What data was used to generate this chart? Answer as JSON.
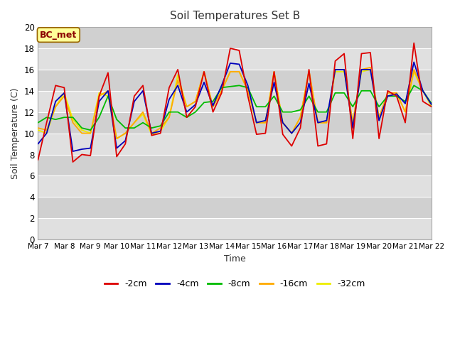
{
  "title": "Soil Temperatures Set B",
  "xlabel": "Time",
  "ylabel": "Soil Temperature (C)",
  "annotation": "BC_met",
  "ylim": [
    0,
    20
  ],
  "yticks": [
    0,
    2,
    4,
    6,
    8,
    10,
    12,
    14,
    16,
    18,
    20
  ],
  "xtick_labels": [
    "Mar 7",
    "Mar 8",
    "Mar 9",
    "Mar 10",
    "Mar 11",
    "Mar 12",
    "Mar 13",
    "Mar 14",
    "Mar 15",
    "Mar 16",
    "Mar 17",
    "Mar 18",
    "Mar 19",
    "Mar 20",
    "Mar 21",
    "Mar 22"
  ],
  "fig_bg_color": "#ffffff",
  "plot_bg_color": "#e8e8e8",
  "band_colors": [
    "#e8e8e8",
    "#d8d8d8"
  ],
  "series": [
    {
      "label": "-2cm",
      "color": "#dd0000",
      "zorder": 5,
      "x": [
        0,
        0.33,
        0.67,
        1.0,
        1.33,
        1.67,
        2.0,
        2.33,
        2.67,
        3.0,
        3.33,
        3.67,
        4.0,
        4.33,
        4.67,
        5.0,
        5.33,
        5.67,
        6.0,
        6.33,
        6.67,
        7.0,
        7.33,
        7.67,
        8.0,
        8.33,
        8.67,
        9.0,
        9.33,
        9.67,
        10.0,
        10.33,
        10.67,
        11.0,
        11.33,
        11.67,
        12.0,
        12.33,
        12.67,
        13.0,
        13.33,
        13.67,
        14.0,
        14.33,
        14.67,
        15.0
      ],
      "y": [
        7.5,
        11.0,
        14.5,
        14.3,
        7.3,
        8.0,
        7.9,
        13.5,
        15.7,
        7.8,
        9.0,
        13.5,
        14.5,
        9.8,
        10.0,
        14.3,
        16.0,
        11.5,
        12.5,
        15.8,
        12.0,
        13.8,
        18.0,
        17.8,
        13.5,
        9.9,
        10.0,
        15.8,
        9.9,
        8.8,
        10.5,
        16.0,
        8.8,
        9.0,
        16.8,
        17.5,
        9.5,
        17.5,
        17.6,
        9.5,
        14.0,
        13.5,
        11.0,
        18.5,
        13.0,
        12.5
      ]
    },
    {
      "label": "-4cm",
      "color": "#0000bb",
      "zorder": 4,
      "x": [
        0,
        0.33,
        0.67,
        1.0,
        1.33,
        1.67,
        2.0,
        2.33,
        2.67,
        3.0,
        3.33,
        3.67,
        4.0,
        4.33,
        4.67,
        5.0,
        5.33,
        5.67,
        6.0,
        6.33,
        6.67,
        7.0,
        7.33,
        7.67,
        8.0,
        8.33,
        8.67,
        9.0,
        9.33,
        9.67,
        10.0,
        10.33,
        10.67,
        11.0,
        11.33,
        11.67,
        12.0,
        12.33,
        12.67,
        13.0,
        13.33,
        13.67,
        14.0,
        14.33,
        14.67,
        15.0
      ],
      "y": [
        9.0,
        10.0,
        13.0,
        13.8,
        8.3,
        8.5,
        8.6,
        13.0,
        14.0,
        8.6,
        9.3,
        13.0,
        14.0,
        10.0,
        10.2,
        13.2,
        14.5,
        12.0,
        12.7,
        14.8,
        12.6,
        14.5,
        16.6,
        16.5,
        14.5,
        11.0,
        11.2,
        14.8,
        11.0,
        10.0,
        11.0,
        14.7,
        11.0,
        11.2,
        16.0,
        16.0,
        10.5,
        16.0,
        16.0,
        11.2,
        13.5,
        13.7,
        12.8,
        16.7,
        14.0,
        12.7
      ]
    },
    {
      "label": "-8cm",
      "color": "#00bb00",
      "zorder": 3,
      "x": [
        0,
        0.33,
        0.67,
        1.0,
        1.33,
        1.67,
        2.0,
        2.33,
        2.67,
        3.0,
        3.33,
        3.67,
        4.0,
        4.33,
        4.67,
        5.0,
        5.33,
        5.67,
        6.0,
        6.33,
        6.67,
        7.0,
        7.33,
        7.67,
        8.0,
        8.33,
        8.67,
        9.0,
        9.33,
        9.67,
        10.0,
        10.33,
        10.67,
        11.0,
        11.33,
        11.67,
        12.0,
        12.33,
        12.67,
        13.0,
        13.33,
        13.67,
        14.0,
        14.33,
        14.67,
        15.0
      ],
      "y": [
        11.0,
        11.5,
        11.3,
        11.5,
        11.5,
        10.5,
        10.3,
        11.5,
        13.5,
        11.3,
        10.5,
        10.5,
        11.0,
        10.5,
        10.7,
        12.0,
        12.0,
        11.5,
        12.0,
        12.9,
        13.0,
        14.3,
        14.4,
        14.5,
        14.3,
        12.5,
        12.5,
        13.5,
        12.0,
        12.0,
        12.2,
        13.5,
        12.0,
        12.0,
        13.8,
        13.8,
        12.5,
        14.0,
        14.0,
        12.5,
        13.5,
        13.5,
        13.0,
        14.5,
        14.0,
        12.8
      ]
    },
    {
      "label": "-16cm",
      "color": "#ffaa00",
      "zorder": 2,
      "x": [
        0,
        0.33,
        0.67,
        1.0,
        1.33,
        1.67,
        2.0,
        2.33,
        2.67,
        3.0,
        3.33,
        3.67,
        4.0,
        4.33,
        4.67,
        5.0,
        5.33,
        5.67,
        6.0,
        6.33,
        6.67,
        7.0,
        7.33,
        7.67,
        8.0,
        8.33,
        8.67,
        9.0,
        9.33,
        9.67,
        10.0,
        10.33,
        10.67,
        11.0,
        11.33,
        11.67,
        12.0,
        12.33,
        12.67,
        13.0,
        13.33,
        13.67,
        14.0,
        14.33,
        14.67,
        15.0
      ],
      "y": [
        10.5,
        10.3,
        12.5,
        13.5,
        11.0,
        10.0,
        10.0,
        13.5,
        14.0,
        9.5,
        10.0,
        11.0,
        12.0,
        10.0,
        10.5,
        11.5,
        15.0,
        12.5,
        13.0,
        15.8,
        12.5,
        14.0,
        15.8,
        15.8,
        14.0,
        11.0,
        11.0,
        15.8,
        11.0,
        10.0,
        11.5,
        15.9,
        11.0,
        11.0,
        16.0,
        16.0,
        11.0,
        16.0,
        16.2,
        11.5,
        13.8,
        13.8,
        12.0,
        16.0,
        14.0,
        12.7
      ]
    },
    {
      "label": "-32cm",
      "color": "#eeee00",
      "zorder": 1,
      "x": [
        0,
        0.33,
        0.67,
        1.0,
        1.33,
        1.67,
        2.0,
        2.33,
        2.67,
        3.0,
        3.33,
        3.67,
        4.0,
        4.33,
        4.67,
        5.0,
        5.33,
        5.67,
        6.0,
        6.33,
        6.67,
        7.0,
        7.33,
        7.67,
        8.0,
        8.33,
        8.67,
        9.0,
        9.33,
        9.67,
        10.0,
        10.33,
        10.67,
        11.0,
        11.33,
        11.67,
        12.0,
        12.33,
        12.67,
        13.0,
        13.33,
        13.67,
        14.0,
        14.33,
        14.67,
        15.0
      ],
      "y": [
        10.3,
        10.0,
        12.5,
        13.8,
        11.3,
        10.3,
        10.0,
        13.8,
        13.5,
        9.5,
        10.0,
        11.0,
        11.8,
        9.9,
        10.2,
        11.5,
        15.5,
        12.5,
        13.0,
        15.8,
        12.5,
        14.0,
        15.8,
        15.8,
        14.0,
        11.0,
        11.0,
        15.8,
        11.0,
        10.0,
        11.5,
        15.8,
        11.0,
        11.0,
        15.8,
        15.8,
        11.0,
        15.8,
        16.0,
        11.5,
        13.5,
        13.8,
        12.0,
        15.8,
        14.0,
        12.5
      ]
    }
  ]
}
